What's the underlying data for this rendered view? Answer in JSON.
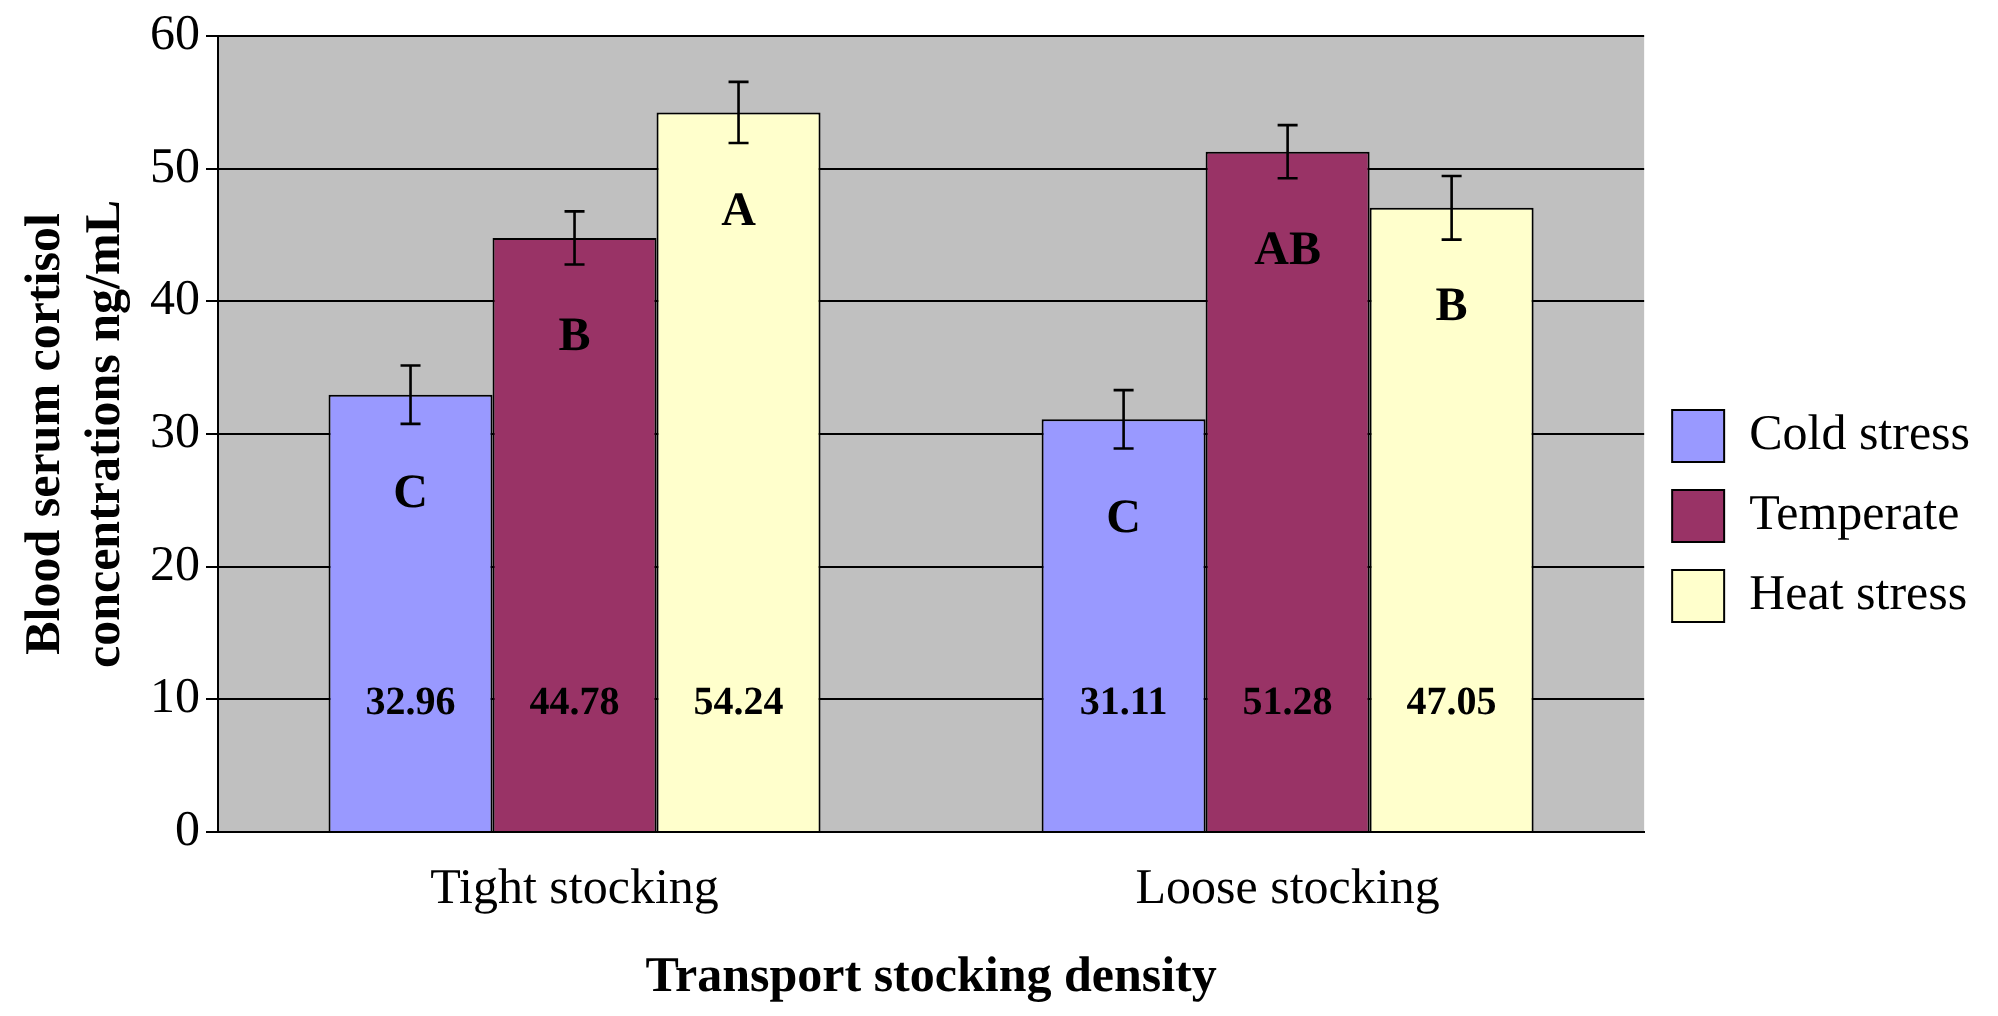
{
  "chart_data": {
    "type": "bar",
    "xlabel": "Transport stocking density",
    "ylabel": "Blood serum cortisol concentrations ng/mL",
    "categories": [
      "Tight stocking",
      "Loose stocking"
    ],
    "series": [
      {
        "name": "Cold stress",
        "color": "#9999ff",
        "values": [
          32.96,
          31.11
        ],
        "errors": [
          2.2,
          2.2
        ]
      },
      {
        "name": "Temperate",
        "color": "#993366",
        "values": [
          44.78,
          51.28
        ],
        "errors": [
          2,
          2
        ]
      },
      {
        "name": "Heat stress",
        "color": "#ffffcc",
        "values": [
          54.24,
          47.05
        ],
        "errors": [
          2.3,
          2.4
        ]
      }
    ],
    "ylim": [
      0,
      60
    ],
    "yticks": [
      0,
      10,
      20,
      30,
      40,
      50,
      60
    ],
    "grid": "y",
    "legend": "right",
    "data_labels": true,
    "annotations": [
      "C",
      "B",
      "A",
      "C",
      "AB",
      "B"
    ]
  }
}
